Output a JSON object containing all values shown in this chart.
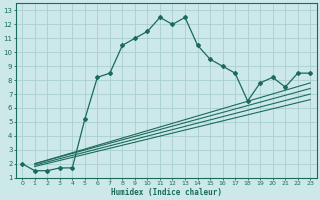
{
  "xlabel": "Humidex (Indice chaleur)",
  "bg_color": "#cce8e8",
  "grid_color": "#aacfcf",
  "line_color": "#1a6b5a",
  "xlim": [
    -0.5,
    23.5
  ],
  "ylim": [
    1,
    13.5
  ],
  "xticks": [
    0,
    1,
    2,
    3,
    4,
    5,
    6,
    7,
    8,
    9,
    10,
    11,
    12,
    13,
    14,
    15,
    16,
    17,
    18,
    19,
    20,
    21,
    22,
    23
  ],
  "yticks": [
    1,
    2,
    3,
    4,
    5,
    6,
    7,
    8,
    9,
    10,
    11,
    12,
    13
  ],
  "main_x": [
    0,
    1,
    2,
    3,
    4,
    5,
    6,
    7,
    8,
    9,
    10,
    11,
    12,
    13,
    14,
    15,
    16,
    17,
    18,
    19,
    20,
    21,
    22,
    23
  ],
  "main_y": [
    2.0,
    1.5,
    1.5,
    1.7,
    1.7,
    5.2,
    8.2,
    8.5,
    10.5,
    11.0,
    11.5,
    12.5,
    12.0,
    12.5,
    10.5,
    9.5,
    9.0,
    8.5,
    6.5,
    7.8,
    8.2,
    7.5,
    8.5,
    8.5
  ],
  "diag_lines": [
    {
      "x": [
        1,
        23
      ],
      "y": [
        2.0,
        7.8
      ]
    },
    {
      "x": [
        1,
        23
      ],
      "y": [
        2.0,
        7.4
      ]
    },
    {
      "x": [
        1,
        23
      ],
      "y": [
        1.9,
        7.0
      ]
    },
    {
      "x": [
        1,
        23
      ],
      "y": [
        1.8,
        6.6
      ]
    }
  ]
}
